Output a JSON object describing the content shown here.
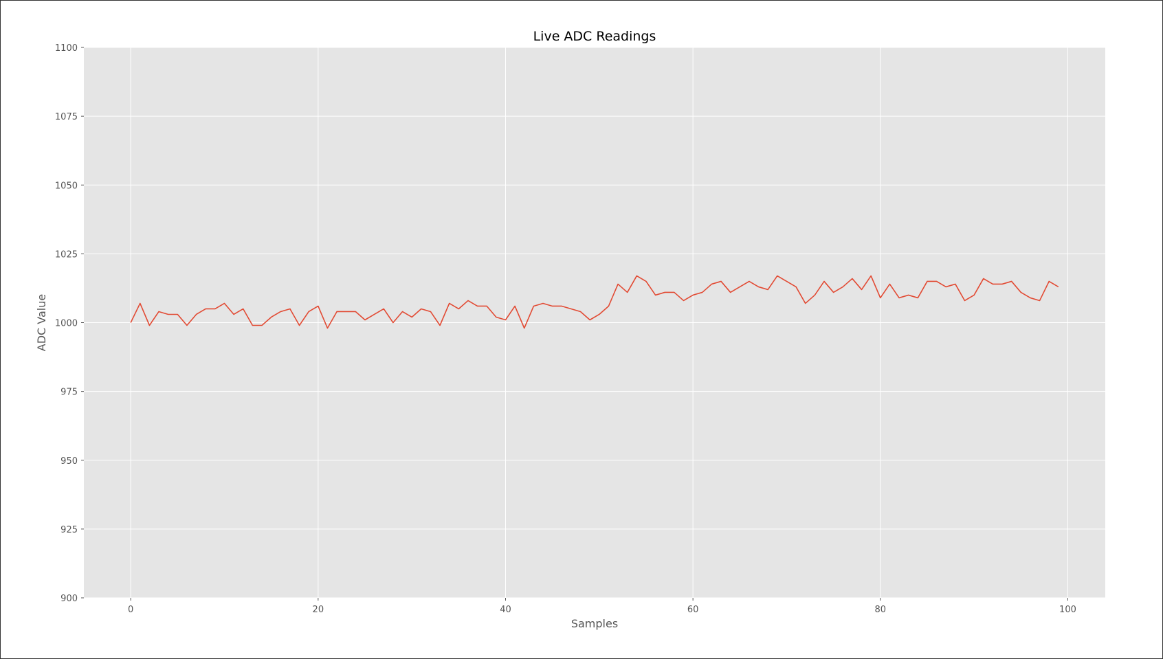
{
  "chart_data": {
    "type": "line",
    "title": "Live ADC Readings",
    "xlabel": "Samples",
    "ylabel": "ADC Value",
    "xlim": [
      -5,
      104
    ],
    "ylim": [
      900,
      1100
    ],
    "x_ticks": [
      0,
      20,
      40,
      60,
      80,
      100
    ],
    "y_ticks": [
      900,
      925,
      950,
      975,
      1000,
      1025,
      1050,
      1075,
      1100
    ],
    "grid": true,
    "legend": "none",
    "style": {
      "background": "#E5E5E5",
      "grid_color": "#FFFFFF",
      "line_color": "#E24A33"
    },
    "series": [
      {
        "x": [
          0,
          1,
          2,
          3,
          4,
          5,
          6,
          7,
          8,
          9,
          10,
          11,
          12,
          13,
          14,
          15,
          16,
          17,
          18,
          19,
          20,
          21,
          22,
          23,
          24,
          25,
          26,
          27,
          28,
          29,
          30,
          31,
          32,
          33,
          34,
          35,
          36,
          37,
          38,
          39,
          40,
          41,
          42,
          43,
          44,
          45,
          46,
          47,
          48,
          49,
          50,
          51,
          52,
          53,
          54,
          55,
          56,
          57,
          58,
          59,
          60,
          61,
          62,
          63,
          64,
          65,
          66,
          67,
          68,
          69,
          70,
          71,
          72,
          73,
          74,
          75,
          76,
          77,
          78,
          79,
          80,
          81,
          82,
          83,
          84,
          85,
          86,
          87,
          88,
          89,
          90,
          91,
          92,
          93,
          94,
          95,
          96,
          97,
          98,
          99
        ],
        "values": [
          1000,
          1007,
          999,
          1004,
          1003,
          1003,
          999,
          1003,
          1005,
          1005,
          1007,
          1003,
          1005,
          999,
          999,
          1002,
          1004,
          1005,
          999,
          1004,
          1006,
          998,
          1004,
          1004,
          1004,
          1001,
          1003,
          1005,
          1000,
          1004,
          1002,
          1005,
          1004,
          999,
          1007,
          1005,
          1008,
          1006,
          1006,
          1002,
          1001,
          1006,
          998,
          1006,
          1007,
          1006,
          1006,
          1005,
          1004,
          1001,
          1003,
          1006,
          1014,
          1011,
          1017,
          1015,
          1010,
          1011,
          1011,
          1008,
          1010,
          1011,
          1014,
          1015,
          1011,
          1013,
          1015,
          1013,
          1012,
          1017,
          1015,
          1013,
          1007,
          1010,
          1015,
          1011,
          1013,
          1016,
          1012,
          1017,
          1009,
          1014,
          1009,
          1010,
          1009,
          1015,
          1015,
          1013,
          1014,
          1008,
          1010,
          1016,
          1014,
          1014,
          1015,
          1011,
          1009,
          1008,
          1015,
          1013
        ]
      }
    ]
  }
}
